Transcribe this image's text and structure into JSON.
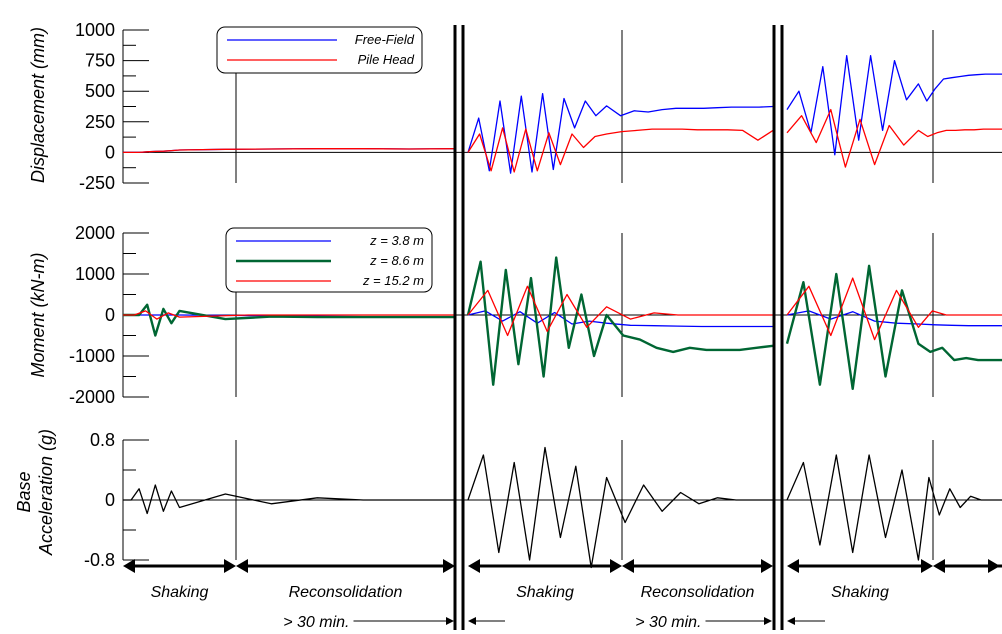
{
  "chart_data": [
    {
      "type": "line",
      "ylabel": "Displacement (mm)",
      "ylim": [
        -250,
        1000
      ],
      "yticks": [
        "1000",
        "750",
        "500",
        "250",
        "0",
        "-250"
      ],
      "ytick_values": [
        1000,
        750,
        500,
        250,
        0,
        -250
      ],
      "grid": false,
      "legend_position": "top-left",
      "series": [
        {
          "name": "Free-Field",
          "color": "#0000ff",
          "segments": [
            {
              "event": 1,
              "values": [
                0,
                0,
                0,
                5,
                8,
                10,
                15,
                20,
                25,
                28,
                30,
                30,
                28,
                30
              ]
            },
            {
              "event": 2,
              "values": [
                0,
                280,
                -150,
                420,
                -170,
                460,
                -160,
                480,
                -140,
                440,
                200,
                420,
                300,
                380,
                300,
                340,
                330,
                350,
                360,
                360,
                360,
                365,
                370,
                370,
                370,
                375
              ]
            },
            {
              "event": 3,
              "values": [
                350,
                500,
                160,
                700,
                -20,
                790,
                100,
                790,
                180,
                750,
                430,
                560,
                420,
                520,
                600,
                610,
                620,
                630,
                635,
                640,
                640,
                640
              ]
            }
          ]
        },
        {
          "name": "Pile Head",
          "color": "#ff0000",
          "segments": [
            {
              "event": 1,
              "values": [
                0,
                0,
                0,
                5,
                8,
                10,
                15,
                20,
                25,
                28,
                30,
                30,
                28,
                30
              ]
            },
            {
              "event": 2,
              "values": [
                0,
                150,
                -150,
                200,
                -160,
                190,
                -150,
                160,
                -100,
                150,
                40,
                130,
                150,
                170,
                180,
                190,
                190,
                190,
                185,
                185,
                185,
                180,
                100,
                180
              ]
            },
            {
              "event": 3,
              "values": [
                160,
                300,
                80,
                350,
                -120,
                270,
                -100,
                220,
                60,
                180,
                130,
                160,
                180,
                180,
                185,
                185,
                190,
                190,
                190
              ]
            }
          ]
        }
      ]
    },
    {
      "type": "line",
      "ylabel": "Moment (kN-m)",
      "ylim": [
        -2000,
        2000
      ],
      "yticks": [
        "2000",
        "1000",
        "0",
        "-1000",
        "-2000"
      ],
      "ytick_values": [
        2000,
        1000,
        0,
        -1000,
        -2000
      ],
      "grid": false,
      "legend_position": "top-left",
      "series": [
        {
          "name": "z = 3.8 m",
          "color": "#0000ff",
          "segments": [
            {
              "event": 1,
              "values": [
                0,
                0,
                0,
                0,
                0,
                0,
                0,
                -10,
                -20,
                -30,
                -40,
                -40,
                -40
              ]
            },
            {
              "event": 2,
              "values": [
                0,
                100,
                -150,
                80,
                -200,
                60,
                -220,
                -150,
                -200,
                -250,
                -260,
                -270,
                -280,
                -280,
                -280,
                -280
              ]
            },
            {
              "event": 3,
              "values": [
                0,
                100,
                -100,
                80,
                -150,
                -200,
                -220,
                -240,
                -250,
                -260,
                -260,
                -260
              ]
            }
          ]
        },
        {
          "name": "z = 8.6 m",
          "color": "#006633",
          "segments": [
            {
              "event": 1,
              "values": [
                0,
                0,
                0,
                250,
                -500,
                150,
                -200,
                100,
                -100,
                -40,
                -50,
                -50,
                -50,
                -50
              ]
            },
            {
              "event": 2,
              "values": [
                0,
                1300,
                -1700,
                1100,
                -1200,
                900,
                -1500,
                1400,
                -800,
                500,
                -1000,
                0,
                -500,
                -600,
                -800,
                -900,
                -800,
                -850,
                -850,
                -850,
                -800,
                -750
              ]
            },
            {
              "event": 3,
              "values": [
                -700,
                800,
                -1700,
                1000,
                -1800,
                1200,
                -1500,
                600,
                -700,
                -900,
                -800,
                -1100,
                -1050,
                -1100,
                -1100,
                -1100
              ]
            }
          ]
        },
        {
          "name": "z = 15.2 m",
          "color": "#ff0000",
          "segments": [
            {
              "event": 1,
              "values": [
                0,
                0,
                100,
                -100,
                50,
                -50,
                0,
                0,
                0,
                0
              ]
            },
            {
              "event": 2,
              "values": [
                0,
                600,
                -500,
                700,
                -400,
                500,
                -300,
                200,
                -100,
                50,
                0,
                0,
                0,
                0,
                0
              ]
            },
            {
              "event": 3,
              "values": [
                0,
                700,
                -500,
                900,
                -600,
                600,
                -300,
                100,
                0,
                0,
                0,
                0,
                0
              ]
            }
          ]
        }
      ]
    },
    {
      "type": "line",
      "ylabel": "Base Acceleration (g)",
      "ylim": [
        -0.8,
        0.8
      ],
      "yticks": [
        "0.8",
        "0",
        "-0.8"
      ],
      "ytick_values": [
        0.8,
        0,
        -0.8
      ],
      "grid": false,
      "series": [
        {
          "segments": [
            {
              "event": 1,
              "values": [
                0,
                0,
                0.15,
                -0.18,
                0.2,
                -0.15,
                0.12,
                -0.1,
                0.08,
                -0.05,
                0.03,
                0,
                0,
                0
              ]
            },
            {
              "event": 2,
              "values": [
                0,
                0.6,
                -0.7,
                0.5,
                -0.8,
                0.7,
                -0.5,
                0.45,
                -0.9,
                0.3,
                -0.3,
                0.2,
                -0.15,
                0.1,
                -0.05,
                0.03,
                0,
                0,
                0
              ]
            },
            {
              "event": 3,
              "values": [
                0,
                0.5,
                -0.6,
                0.6,
                -0.7,
                0.6,
                -0.5,
                0.4,
                -0.8,
                0.3,
                -0.2,
                0.15,
                -0.1,
                0.05,
                0,
                0,
                0
              ]
            }
          ]
        }
      ]
    }
  ],
  "phases": [
    {
      "label": "Shaking",
      "note": ""
    },
    {
      "label": "Reconsolidation",
      "note": "> 30 min."
    },
    {
      "label": "Shaking",
      "note": ""
    },
    {
      "label": "Reconsolidation",
      "note": "> 30 min."
    },
    {
      "label": "Shaking",
      "note": ""
    }
  ],
  "colors": {
    "axis": "#000000",
    "free_field": "#0000ff",
    "pile_head": "#ff0000",
    "z38": "#0000ff",
    "z86": "#006633",
    "z152": "#ff0000",
    "accel": "#000000"
  }
}
